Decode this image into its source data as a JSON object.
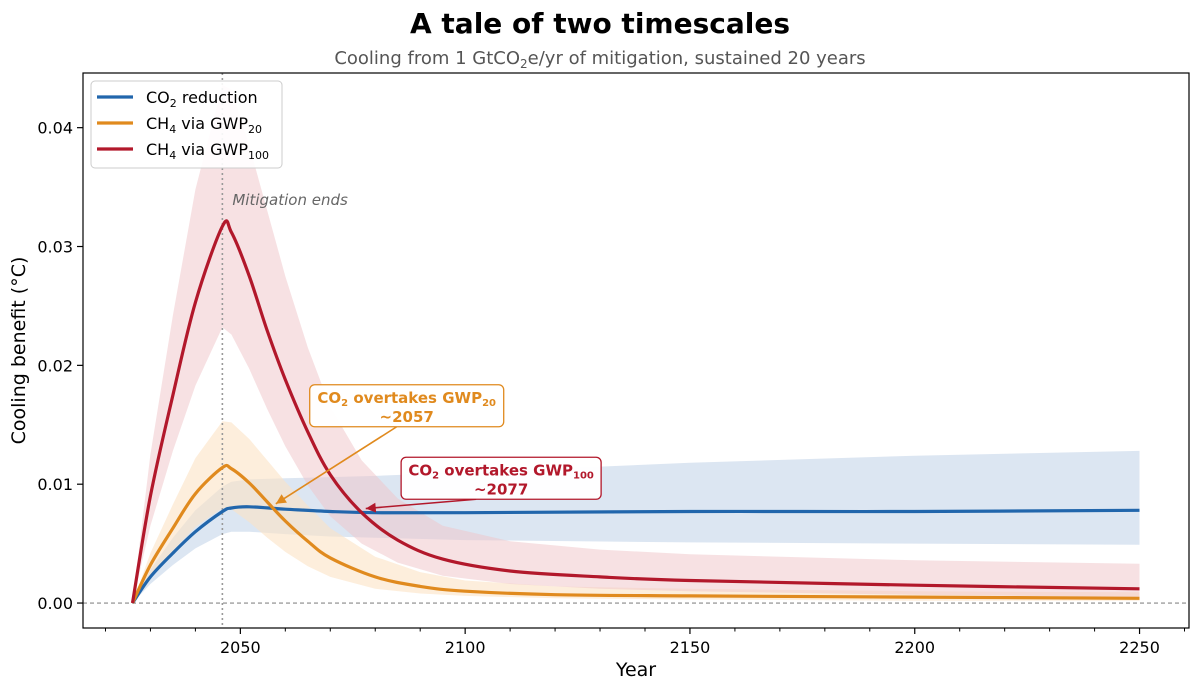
{
  "colors": {
    "co2": "#2166ac",
    "gwp20": "#e08a1e",
    "gwp100": "#b2182b",
    "co2_band": "#b9cde6",
    "gwp20_band": "#fbe3c4",
    "gwp100_band": "#efc3c8"
  },
  "chart_data": {
    "type": "line",
    "title": "A tale of two timescales",
    "subtitle_parts": [
      "Cooling from 1 GtCO",
      "2",
      "e/yr of mitigation, sustained 20 years"
    ],
    "xlabel": "Year",
    "ylabel": "Cooling benefit (°C)",
    "xlim": [
      2015,
      2261
    ],
    "ylim": [
      -0.0021,
      0.0446
    ],
    "x_ticks": [
      2050,
      2100,
      2150,
      2200,
      2250
    ],
    "x_tick_labels": [
      "2050",
      "2100",
      "2150",
      "2200",
      "2250"
    ],
    "y_ticks": [
      0.0,
      0.01,
      0.02,
      0.03,
      0.04
    ],
    "y_tick_labels": [
      "0.00",
      "0.01",
      "0.02",
      "0.03",
      "0.04"
    ],
    "zero_line": 0,
    "mitigation_end_year": 2046,
    "mitigation_end_label": "Mitigation ends",
    "legend": {
      "location": "top-left",
      "entries": [
        {
          "key": "co2",
          "base": "CO",
          "sub": "2",
          "suffix": " reduction",
          "sub2": ""
        },
        {
          "key": "gwp20",
          "base": "CH",
          "sub": "4",
          "suffix": " via GWP",
          "sub2": "20"
        },
        {
          "key": "gwp100",
          "base": "CH",
          "sub": "4",
          "suffix": " via GWP",
          "sub2": "100"
        }
      ]
    },
    "series": [
      {
        "key": "co2",
        "name": "CO2 reduction",
        "x": [
          2026,
          2030,
          2035,
          2040,
          2046,
          2048,
          2052,
          2060,
          2070,
          2080,
          2100,
          2150,
          2200,
          2250
        ],
        "y": [
          0.0,
          0.0022,
          0.0042,
          0.006,
          0.0077,
          0.008,
          0.0081,
          0.0079,
          0.0077,
          0.0076,
          0.0076,
          0.0077,
          0.0077,
          0.0078
        ],
        "lower": [
          0.0,
          0.0016,
          0.0032,
          0.0046,
          0.0058,
          0.006,
          0.006,
          0.0058,
          0.0056,
          0.0055,
          0.0053,
          0.0051,
          0.005,
          0.0049
        ],
        "upper": [
          0.0,
          0.0028,
          0.0055,
          0.0078,
          0.0098,
          0.0102,
          0.0104,
          0.0105,
          0.0106,
          0.0107,
          0.011,
          0.0118,
          0.0124,
          0.0128
        ]
      },
      {
        "key": "gwp20",
        "name": "CH4 via GWP20",
        "x": [
          2026,
          2030,
          2035,
          2040,
          2046,
          2048,
          2052,
          2056,
          2060,
          2065,
          2070,
          2080,
          2090,
          2100,
          2120,
          2150,
          2200,
          2250
        ],
        "y": [
          0.0,
          0.0032,
          0.0063,
          0.0092,
          0.0114,
          0.0113,
          0.0101,
          0.0085,
          0.0069,
          0.0052,
          0.0038,
          0.0022,
          0.0014,
          0.001,
          0.0007,
          0.0006,
          0.0005,
          0.0004
        ],
        "lower": [
          0.0,
          0.0022,
          0.0044,
          0.0064,
          0.008,
          0.0079,
          0.0068,
          0.0055,
          0.0043,
          0.0031,
          0.0022,
          0.0012,
          0.0008,
          0.0006,
          0.0004,
          0.0003,
          0.0002,
          0.0002
        ],
        "upper": [
          0.0,
          0.0042,
          0.0083,
          0.0122,
          0.0153,
          0.0152,
          0.0138,
          0.012,
          0.0102,
          0.0082,
          0.0063,
          0.0039,
          0.0026,
          0.0019,
          0.0014,
          0.0012,
          0.001,
          0.0009
        ]
      },
      {
        "key": "gwp100",
        "name": "CH4 via GWP100",
        "x": [
          2026,
          2030,
          2035,
          2040,
          2046,
          2048,
          2052,
          2056,
          2060,
          2065,
          2070,
          2077,
          2085,
          2095,
          2110,
          2130,
          2150,
          2200,
          2250
        ],
        "y": [
          0.0,
          0.009,
          0.0175,
          0.0253,
          0.0317,
          0.0312,
          0.0275,
          0.0229,
          0.0188,
          0.0144,
          0.0108,
          0.0076,
          0.0053,
          0.0037,
          0.0027,
          0.0022,
          0.0019,
          0.0015,
          0.0012
        ],
        "lower": [
          0.0,
          0.0065,
          0.0128,
          0.0183,
          0.0232,
          0.0226,
          0.0197,
          0.0163,
          0.0132,
          0.0099,
          0.0073,
          0.005,
          0.0034,
          0.0023,
          0.0016,
          0.0012,
          0.001,
          0.0007,
          0.0005
        ],
        "upper": [
          0.0,
          0.0125,
          0.0242,
          0.0348,
          0.0436,
          0.0432,
          0.0385,
          0.033,
          0.0275,
          0.0215,
          0.0165,
          0.012,
          0.0088,
          0.0065,
          0.0052,
          0.0045,
          0.0041,
          0.0036,
          0.0033
        ]
      }
    ],
    "annotations": [
      {
        "key": "gwp20",
        "line1_base": "CO",
        "line1_sub": "2",
        "line1_mid": " overtakes GWP",
        "line1_sub2": "20",
        "line2": "~2057",
        "target": [
          2057,
          0.0081
        ],
        "text_anchor": [
          2087,
          0.0166
        ]
      },
      {
        "key": "gwp100",
        "line1_base": "CO",
        "line1_sub": "2",
        "line1_mid": " overtakes GWP",
        "line1_sub2": "100",
        "line2": "~2077",
        "target": [
          2077,
          0.0077
        ],
        "text_anchor": [
          2108,
          0.0105
        ]
      }
    ]
  }
}
